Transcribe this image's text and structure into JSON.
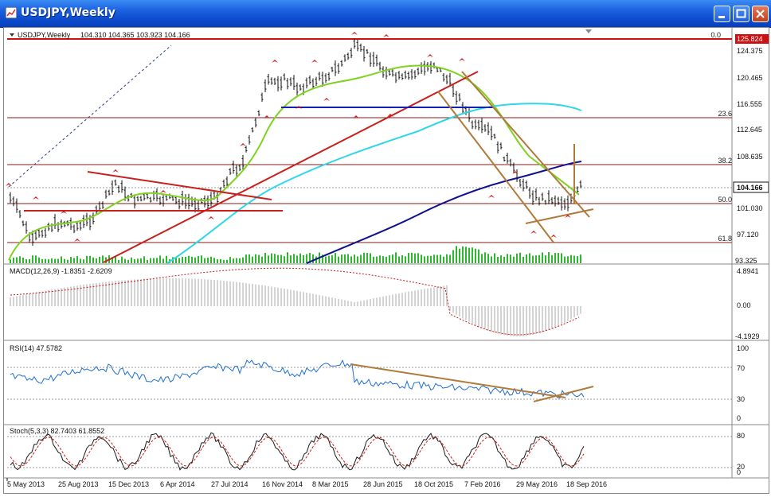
{
  "window": {
    "title": "USDJPY,Weekly",
    "controls": [
      "minimize",
      "maximize",
      "close"
    ]
  },
  "header": {
    "symbol_label": "USDJPY,Weekly",
    "ohlc": "104.310 104.365 103.923 104.166"
  },
  "price_axis": {
    "labels": [
      "124.375",
      "120.465",
      "116.555",
      "112.645",
      "108.635",
      "101.030",
      "97.120",
      "93.325"
    ],
    "top_marker": "125.824",
    "current_price": "104.166"
  },
  "fibonacci": {
    "levels": [
      "0.0",
      "23.6",
      "38.2",
      "50.0",
      "61.8"
    ]
  },
  "macd": {
    "label": "MACD(12,26,9) -1.8351 -2.6209",
    "axis": [
      "4.8941",
      "0.00",
      "-4.1929"
    ]
  },
  "rsi": {
    "label": "RSI(14) 47.5782",
    "axis": [
      "100",
      "70",
      "30",
      "0"
    ]
  },
  "stoch": {
    "label": "Stoch(5,3,3) 82.7403 61.8552",
    "axis": [
      "80",
      "20",
      "0"
    ]
  },
  "time_axis": [
    "5 May 2013",
    "25 Aug 2013",
    "15 Dec 2013",
    "6 Apr 2014",
    "27 Jul 2014",
    "16 Nov 2014",
    "8 Mar 2015",
    "28 Jun 2015",
    "18 Oct 2015",
    "7 Feb 2016",
    "29 May 2016",
    "18 Sep 2016"
  ],
  "colors": {
    "titlebar": "#0a47c8",
    "ma_fast": "#7fd320",
    "ma_mid": "#2fd6e8",
    "ma_slow": "#11118f",
    "fib_line": "#8b1a1a",
    "trend_red": "#c8201c",
    "channel_brown": "#b07a3a",
    "rsi_line": "#1f6fd0",
    "volume": "#2eb82e"
  }
}
